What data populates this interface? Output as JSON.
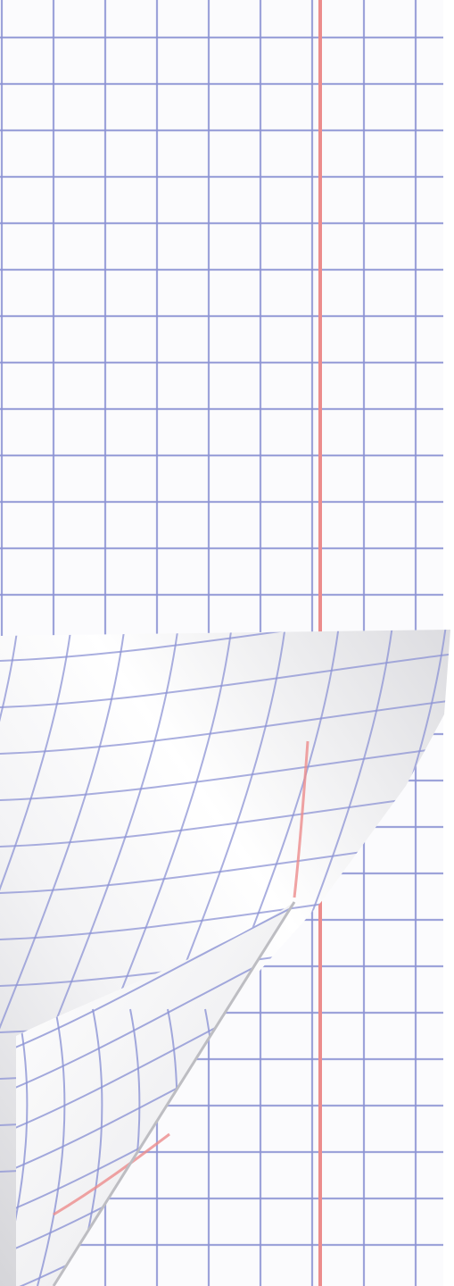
{
  "image": {
    "subject": "graph-paper-sheet-with-page-curl",
    "paper_color": "#fbfbfd",
    "grid_line_color": "#8c93d4",
    "margin_line_color": "#ec8c8c",
    "curl_highlight_color": "#ffffff",
    "curl_shadow_color": "#cfcfd3"
  }
}
